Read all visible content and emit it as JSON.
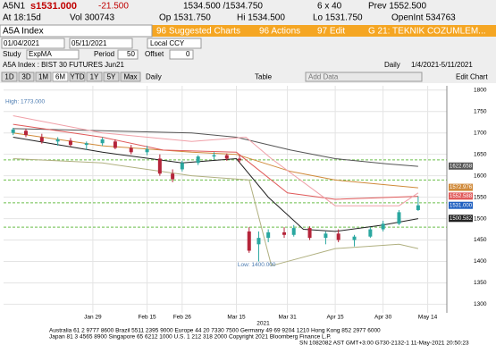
{
  "header": {
    "ticker": "A5N1",
    "last": "s1531.000",
    "change": "-21.500",
    "bid_ask": "1534.500 /1534.750",
    "size": "6 x 40",
    "prev": "Prev 1552.500",
    "time": "At 18:15d",
    "volume": "Vol 300743",
    "open": "Op 1531.750",
    "high": "Hi 1534.500",
    "low": "Lo 1531.750",
    "open_int": "OpenInt 534763"
  },
  "menu": {
    "security": "A5A Index",
    "suggested": "96 Suggested Charts",
    "actions": "96 Actions",
    "edit": "97 Edit",
    "page": "G 21: TEKNIK COZUMLEM..."
  },
  "range": {
    "start": "01/04/2021",
    "end": "05/11/2021",
    "currency": "Local CCY"
  },
  "study": {
    "label": "Study",
    "name": "ExpMA",
    "period_label": "Period",
    "period": "50",
    "offset_label": "Offset",
    "offset": "0"
  },
  "info": {
    "name": "A5A Index : BIST 30 FUTURES  Jun21",
    "freq": "Daily",
    "span": "1/4/2021-5/11/2021"
  },
  "toolbar": {
    "buttons": [
      "1D",
      "3D",
      "1M",
      "6M",
      "YTD",
      "1Y",
      "5Y",
      "Max"
    ],
    "period": "Daily",
    "table": "Table",
    "add_data": "Add Data",
    "edit_chart": "Edit Chart"
  },
  "chart_data": {
    "type": "candlestick",
    "up_color": "#2aa7a0",
    "down_color": "#b5253a",
    "x": [
      "2021-01-04",
      "2021-01-08",
      "2021-01-13",
      "2021-01-18",
      "2021-01-22",
      "2021-01-27",
      "2021-02-01",
      "2021-02-05",
      "2021-02-10",
      "2021-02-15",
      "2021-02-19",
      "2021-02-23",
      "2021-02-26",
      "2021-03-03",
      "2021-03-08",
      "2021-03-12",
      "2021-03-16",
      "2021-03-19",
      "2021-03-22",
      "2021-03-25",
      "2021-03-30",
      "2021-04-02",
      "2021-04-07",
      "2021-04-12",
      "2021-04-16",
      "2021-04-21",
      "2021-04-26",
      "2021-04-30",
      "2021-05-05",
      "2021-05-11"
    ],
    "open": [
      1700,
      1705,
      1690,
      1680,
      1682,
      1672,
      1676,
      1680,
      1665,
      1655,
      1640,
      1605,
      1615,
      1630,
      1645,
      1648,
      1640,
      1470,
      1440,
      1455,
      1468,
      1462,
      1478,
      1455,
      1465,
      1450,
      1458,
      1475,
      1488,
      1520
    ],
    "high": [
      1712,
      1710,
      1698,
      1690,
      1688,
      1680,
      1690,
      1685,
      1672,
      1670,
      1650,
      1615,
      1635,
      1648,
      1655,
      1652,
      1648,
      1480,
      1470,
      1475,
      1480,
      1485,
      1482,
      1470,
      1475,
      1462,
      1480,
      1495,
      1520,
      1552
    ],
    "low": [
      1695,
      1690,
      1675,
      1670,
      1668,
      1660,
      1670,
      1662,
      1650,
      1648,
      1600,
      1585,
      1610,
      1625,
      1638,
      1635,
      1630,
      1420,
      1400,
      1445,
      1455,
      1458,
      1450,
      1440,
      1445,
      1435,
      1455,
      1470,
      1485,
      1518
    ],
    "close": [
      1708,
      1695,
      1680,
      1685,
      1672,
      1676,
      1685,
      1665,
      1655,
      1662,
      1605,
      1592,
      1630,
      1645,
      1648,
      1640,
      1636,
      1425,
      1455,
      1468,
      1462,
      1478,
      1455,
      1465,
      1450,
      1458,
      1475,
      1488,
      1515,
      1531
    ],
    "series": [
      {
        "color": "#555555",
        "x": [
          "2021-01-04",
          "2021-02-01",
          "2021-03-01",
          "2021-03-15",
          "2021-04-01",
          "2021-04-15",
          "2021-05-01",
          "2021-05-11"
        ],
        "values": [
          1710,
          1705,
          1700,
          1690,
          1660,
          1640,
          1628,
          1622
        ]
      },
      {
        "color": "#d08a3a",
        "x": [
          "2021-01-04",
          "2021-02-01",
          "2021-03-01",
          "2021-03-15",
          "2021-04-01",
          "2021-04-15",
          "2021-05-11"
        ],
        "values": [
          1700,
          1670,
          1655,
          1650,
          1610,
          1590,
          1572
        ]
      },
      {
        "color": "#e05a5a",
        "x": [
          "2021-01-04",
          "2021-02-01",
          "2021-02-20",
          "2021-03-15",
          "2021-03-31",
          "2021-04-15",
          "2021-05-11"
        ],
        "values": [
          1720,
          1690,
          1660,
          1655,
          1560,
          1545,
          1552
        ]
      },
      {
        "color": "#222222",
        "x": [
          "2021-01-04",
          "2021-02-01",
          "2021-02-26",
          "2021-03-15",
          "2021-03-25",
          "2021-04-05",
          "2021-04-15",
          "2021-04-30",
          "2021-05-11"
        ],
        "values": [
          1690,
          1655,
          1630,
          1640,
          1550,
          1475,
          1470,
          1485,
          1500
        ]
      },
      {
        "color": "#f0a0a8",
        "x": [
          "2021-01-04",
          "2021-02-01",
          "2021-03-01",
          "2021-03-18",
          "2021-03-26",
          "2021-04-15",
          "2021-05-05",
          "2021-05-11"
        ],
        "values": [
          1740,
          1700,
          1680,
          1690,
          1640,
          1530,
          1530,
          1560
        ]
      },
      {
        "color": "#b0b080",
        "x": [
          "2021-01-04",
          "2021-02-01",
          "2021-03-01",
          "2021-03-19",
          "2021-03-26",
          "2021-04-15",
          "2021-05-05",
          "2021-05-11"
        ],
        "values": [
          1640,
          1630,
          1600,
          1590,
          1390,
          1430,
          1440,
          1430
        ]
      }
    ],
    "levels": [
      1637,
      1590,
      1537,
      1480
    ],
    "level_color": "#6bbf4a",
    "price_tags": [
      {
        "value": 1622.658,
        "label": "1622.658",
        "color": "#555555"
      },
      {
        "value": 1572.976,
        "label": "1572.976",
        "color": "#d08a3a"
      },
      {
        "value": 1552.588,
        "label": "1552.588",
        "color": "#e05a5a"
      },
      {
        "value": 1531,
        "label": "1531.000",
        "color": "#2060c0"
      },
      {
        "value": 1500.582,
        "label": "1500.582",
        "color": "#222222"
      }
    ],
    "high_note": {
      "value": 1773,
      "label": "High: 1773.000"
    },
    "low_note": {
      "value": 1400,
      "label": "Low: 1400.000"
    },
    "xlim": [
      "2021-01-01",
      "2021-05-20"
    ],
    "ylim": [
      1280,
      1810
    ],
    "yticks": [
      1300,
      1350,
      1400,
      1450,
      1500,
      1550,
      1600,
      1650,
      1700,
      1750,
      1800
    ],
    "xticks": [
      {
        "value": "2021-01-29",
        "label": "Jan 29"
      },
      {
        "value": "2021-02-15",
        "label": "Feb 15"
      },
      {
        "value": "2021-02-26",
        "label": "Feb 26"
      },
      {
        "value": "2021-03-15",
        "label": "Mar 15"
      },
      {
        "value": "2021-03-31",
        "label": "Mar 31"
      },
      {
        "value": "2021-04-15",
        "label": "Apr 15"
      },
      {
        "value": "2021-04-30",
        "label": "Apr 30"
      },
      {
        "value": "2021-05-14",
        "label": "May 14"
      }
    ],
    "year": "2021",
    "grid": true
  },
  "footer": {
    "line1": "Australia 61 2 9777 8600 Brazil 5511 2395 9000 Europe 44 20 7330 7500 Germany 49 69 9204 1210 Hong Kong 852 2977 6000",
    "line2": "Japan 81 3 4565 8900       Singapore 65 6212 1000       U.S. 1 212 318 2000       Copyright 2021 Bloomberg Finance L.P.",
    "line3": "SN 1082082 AST  GMT+3:00 G730-2132-1 11-May-2021 20:50:23"
  }
}
